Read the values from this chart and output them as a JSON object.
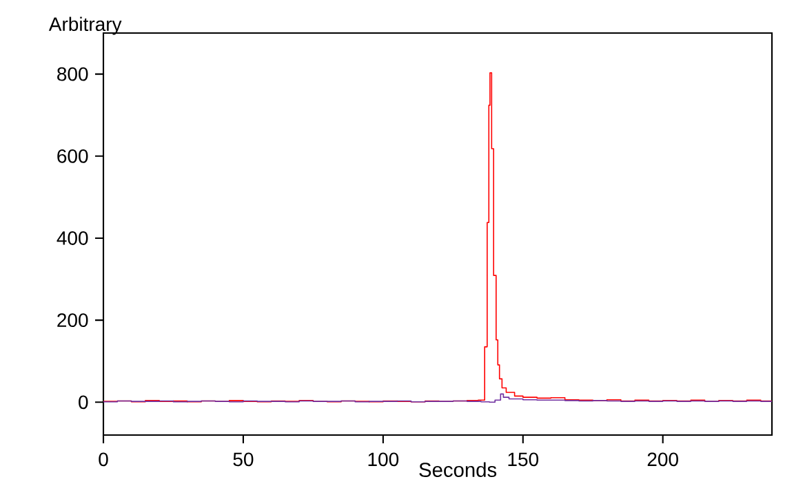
{
  "chart_data": {
    "type": "step",
    "xlabel": "Seconds",
    "ylabel": "Arbitrary",
    "xlim": [
      0,
      239
    ],
    "ylim": [
      -80,
      900
    ],
    "xticks": [
      0,
      50,
      100,
      150,
      200
    ],
    "yticks": [
      0,
      200,
      400,
      600,
      800
    ],
    "grid": false,
    "series": [
      {
        "color": "#ff0000",
        "x": [
          0,
          5,
          10,
          15,
          20,
          25,
          30,
          35,
          40,
          45,
          50,
          55,
          60,
          65,
          70,
          75,
          80,
          85,
          90,
          95,
          100,
          105,
          110,
          115,
          120,
          125,
          130,
          134,
          136.3,
          137.2,
          137.8,
          138.2,
          138.8,
          139.5,
          140.4,
          141,
          141.6,
          142.5,
          144,
          147,
          150,
          155,
          160,
          165,
          170,
          175,
          180,
          185,
          190,
          195,
          200,
          205,
          210,
          215,
          220,
          225,
          230,
          235,
          239
        ],
        "values": [
          2,
          3,
          1,
          4,
          2,
          3,
          1,
          3,
          2,
          4,
          2,
          1,
          3,
          2,
          4,
          2,
          1,
          3,
          2,
          1,
          3,
          2,
          1,
          3,
          2,
          3,
          4,
          5,
          135,
          438,
          724,
          803,
          618,
          309,
          152,
          91,
          57,
          35,
          24,
          15,
          12,
          10,
          11,
          6,
          5,
          4,
          6,
          3,
          5,
          3,
          4,
          3,
          5,
          2,
          4,
          3,
          5,
          3,
          4
        ]
      },
      {
        "color": "#7030a0",
        "x": [
          0,
          5,
          10,
          15,
          20,
          25,
          30,
          35,
          40,
          45,
          50,
          55,
          60,
          65,
          70,
          75,
          80,
          85,
          90,
          95,
          100,
          105,
          110,
          115,
          120,
          125,
          130,
          135,
          138,
          140,
          142,
          143,
          145,
          150,
          155,
          160,
          165,
          170,
          175,
          180,
          185,
          190,
          195,
          200,
          205,
          210,
          215,
          220,
          225,
          230,
          235,
          239
        ],
        "values": [
          1,
          3,
          2,
          2,
          3,
          1,
          2,
          3,
          2,
          1,
          3,
          2,
          2,
          1,
          3,
          2,
          2,
          3,
          1,
          2,
          2,
          3,
          1,
          2,
          2,
          3,
          2,
          1,
          0,
          5,
          20,
          12,
          8,
          6,
          5,
          5,
          4,
          3,
          4,
          3,
          2,
          3,
          2,
          3,
          2,
          3,
          2,
          3,
          2,
          3,
          2,
          2
        ]
      }
    ]
  }
}
